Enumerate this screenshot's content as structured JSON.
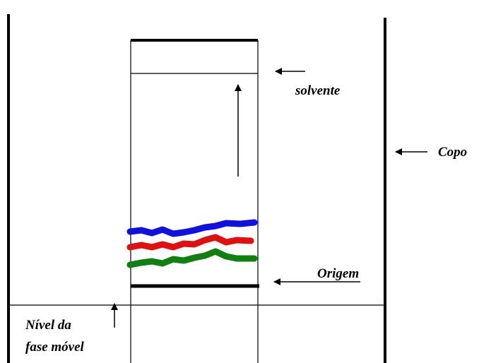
{
  "labels": {
    "solvent": "solvente",
    "beaker": "Copo",
    "origin": "Origem",
    "mobile_phase_level": [
      "Nível da",
      "fase móvel"
    ]
  }
}
